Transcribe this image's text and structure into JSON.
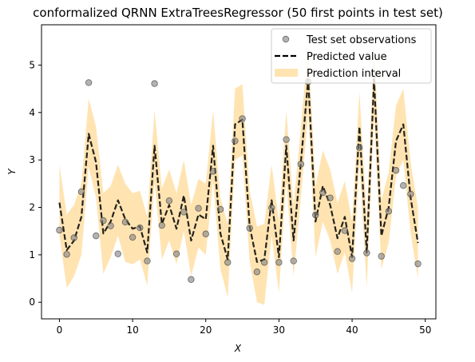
{
  "chart_data": {
    "type": "line",
    "title": "conformalized QRNN ExtraTreesRegressor (50 first points in test set)",
    "xlabel": "X",
    "ylabel": "Y",
    "xlim": [
      -2.45,
      51.45
    ],
    "ylim": [
      -0.35,
      5.85
    ],
    "xticks": [
      0,
      10,
      20,
      30,
      40,
      50
    ],
    "yticks": [
      0,
      1,
      2,
      3,
      4,
      5
    ],
    "legend_position": "top-right",
    "colors": {
      "observation": "#808080",
      "prediction": "#000000",
      "interval": "#ffa500"
    },
    "series": [
      {
        "name": "Test set observations",
        "kind": "scatter",
        "x": [
          0,
          1,
          2,
          3,
          4,
          5,
          6,
          7,
          8,
          9,
          10,
          11,
          12,
          13,
          14,
          15,
          16,
          17,
          18,
          19,
          20,
          21,
          22,
          23,
          24,
          25,
          26,
          27,
          28,
          29,
          30,
          31,
          32,
          33,
          34,
          35,
          36,
          37,
          38,
          39,
          40,
          41,
          42,
          43,
          44,
          45,
          46,
          47,
          48,
          49
        ],
        "y": [
          1.52,
          1.01,
          1.36,
          2.33,
          4.63,
          1.4,
          1.72,
          1.61,
          1.02,
          1.69,
          1.37,
          1.57,
          0.87,
          4.61,
          1.62,
          2.14,
          1.02,
          1.9,
          0.48,
          1.98,
          1.44,
          2.76,
          1.96,
          0.84,
          3.4,
          3.87,
          1.56,
          0.64,
          0.84,
          1.99,
          0.84,
          3.43,
          0.87,
          2.91,
          4.65,
          1.84,
          2.31,
          2.2,
          1.07,
          1.51,
          0.92,
          3.26,
          1.04,
          4.8,
          0.97,
          1.92,
          2.78,
          2.46,
          2.28,
          0.81
        ]
      },
      {
        "name": "Predicted value",
        "kind": "line",
        "x": [
          0,
          1,
          2,
          3,
          4,
          5,
          6,
          7,
          8,
          9,
          10,
          11,
          12,
          13,
          14,
          15,
          16,
          17,
          18,
          19,
          20,
          21,
          22,
          23,
          24,
          25,
          26,
          27,
          28,
          29,
          30,
          31,
          32,
          33,
          34,
          35,
          36,
          37,
          38,
          39,
          40,
          41,
          42,
          43,
          44,
          45,
          46,
          47,
          48,
          49
        ],
        "y": [
          2.1,
          1.1,
          1.3,
          1.8,
          3.55,
          2.95,
          1.45,
          1.7,
          2.15,
          1.75,
          1.55,
          1.6,
          1.05,
          3.3,
          1.65,
          2.05,
          1.55,
          2.25,
          1.3,
          1.85,
          1.75,
          3.3,
          1.45,
          0.9,
          3.75,
          3.85,
          1.6,
          0.85,
          0.9,
          2.15,
          0.95,
          3.3,
          1.3,
          2.95,
          4.7,
          1.7,
          2.45,
          2.05,
          1.35,
          1.8,
          0.95,
          3.7,
          1.05,
          4.7,
          1.4,
          2.0,
          3.4,
          3.75,
          2.2,
          1.25
        ]
      },
      {
        "name": "Prediction interval",
        "kind": "band",
        "x": [
          0,
          1,
          2,
          3,
          4,
          5,
          6,
          7,
          8,
          9,
          10,
          11,
          12,
          13,
          14,
          15,
          16,
          17,
          18,
          19,
          20,
          21,
          22,
          23,
          24,
          25,
          26,
          27,
          28,
          29,
          30,
          31,
          32,
          33,
          34,
          35,
          36,
          37,
          38,
          39,
          40,
          41,
          42,
          43,
          44,
          45,
          46,
          47,
          48,
          49
        ],
        "lower": [
          1.4,
          0.3,
          0.55,
          1.0,
          2.85,
          2.2,
          0.6,
          0.95,
          1.4,
          0.85,
          0.8,
          0.9,
          0.35,
          2.55,
          0.9,
          1.3,
          0.8,
          1.5,
          0.55,
          1.15,
          1.0,
          2.55,
          0.7,
          0.1,
          3.0,
          3.1,
          0.85,
          0.0,
          -0.05,
          1.4,
          0.2,
          2.55,
          0.55,
          2.2,
          4.0,
          0.95,
          1.7,
          1.3,
          0.6,
          1.05,
          0.2,
          2.95,
          0.3,
          3.95,
          0.7,
          1.25,
          2.65,
          3.0,
          1.45,
          0.5
        ],
        "upper": [
          2.9,
          1.85,
          2.05,
          2.5,
          4.3,
          3.7,
          2.3,
          2.45,
          2.9,
          2.5,
          2.3,
          2.35,
          1.8,
          4.05,
          2.4,
          2.8,
          2.3,
          3.0,
          2.05,
          2.6,
          2.5,
          4.05,
          2.2,
          1.65,
          4.5,
          4.6,
          2.35,
          1.6,
          1.65,
          2.9,
          1.7,
          4.05,
          2.05,
          3.7,
          5.45,
          2.45,
          3.2,
          2.8,
          2.1,
          2.55,
          1.7,
          4.45,
          1.8,
          5.45,
          2.15,
          2.75,
          4.15,
          4.5,
          2.95,
          2.0
        ]
      }
    ]
  }
}
